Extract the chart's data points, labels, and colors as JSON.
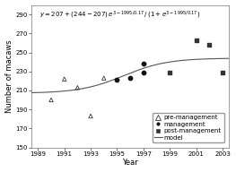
{
  "xlabel": "Year",
  "ylabel": "Number of macaws",
  "ylim": [
    150,
    300
  ],
  "xlim": [
    1988.5,
    2003.5
  ],
  "xticks": [
    1989,
    1991,
    1993,
    1995,
    1997,
    1999,
    2001,
    2003
  ],
  "yticks": [
    150,
    170,
    190,
    210,
    230,
    250,
    270,
    290
  ],
  "pre_management": [
    [
      1990,
      200
    ],
    [
      1991,
      222
    ],
    [
      1992,
      213
    ],
    [
      1993,
      183
    ],
    [
      1994,
      223
    ]
  ],
  "management": [
    [
      1995,
      221
    ],
    [
      1996,
      223
    ],
    [
      1997,
      229
    ],
    [
      1997,
      238
    ]
  ],
  "post_management": [
    [
      1999,
      229
    ],
    [
      2001,
      263
    ],
    [
      2002,
      258
    ],
    [
      2003,
      229
    ]
  ],
  "model_L": 207,
  "model_U": 244,
  "model_k": 1995.5,
  "model_r": 0.6,
  "line_color": "#555555",
  "pre_color": "#333333",
  "mgmt_color": "#111111",
  "post_color": "#333333",
  "legend_fontsize": 5.0,
  "tick_fontsize": 5.0,
  "label_fontsize": 6.0,
  "formula_fontsize": 5.0
}
